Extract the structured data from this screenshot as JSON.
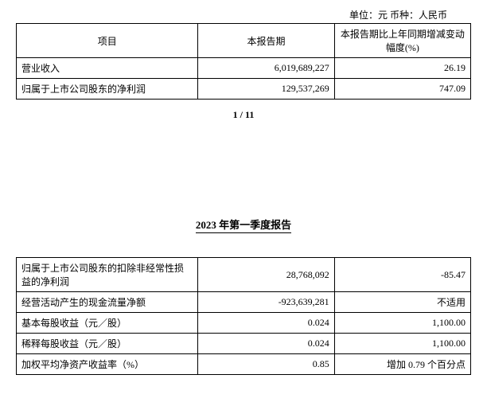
{
  "unit_line": "单位：元   币种：人民币",
  "table1": {
    "headers": {
      "item": "项目",
      "period": "本报告期",
      "change": "本报告期比上年同期增减变动幅度(%)"
    },
    "rows": [
      {
        "item": "营业收入",
        "value": "6,019,689,227",
        "change": "26.19"
      },
      {
        "item": "归属于上市公司股东的净利润",
        "value": "129,537,269",
        "change": "747.09"
      }
    ]
  },
  "page_number": "1 / 11",
  "report_title": "2023 年第一季度报告",
  "table2": {
    "rows": [
      {
        "item": "归属于上市公司股东的扣除非经常性损益的净利润",
        "value": "28,768,092",
        "change": "-85.47"
      },
      {
        "item": "经营活动产生的现金流量净额",
        "value": "-923,639,281",
        "change": "不适用"
      },
      {
        "item": "基本每股收益（元／股）",
        "value": "0.024",
        "change": "1,100.00"
      },
      {
        "item": "稀释每股收益（元／股）",
        "value": "0.024",
        "change": "1,100.00"
      },
      {
        "item": "加权平均净资产收益率（%）",
        "value": "0.85",
        "change": "增加 0.79 个百分点"
      }
    ]
  }
}
